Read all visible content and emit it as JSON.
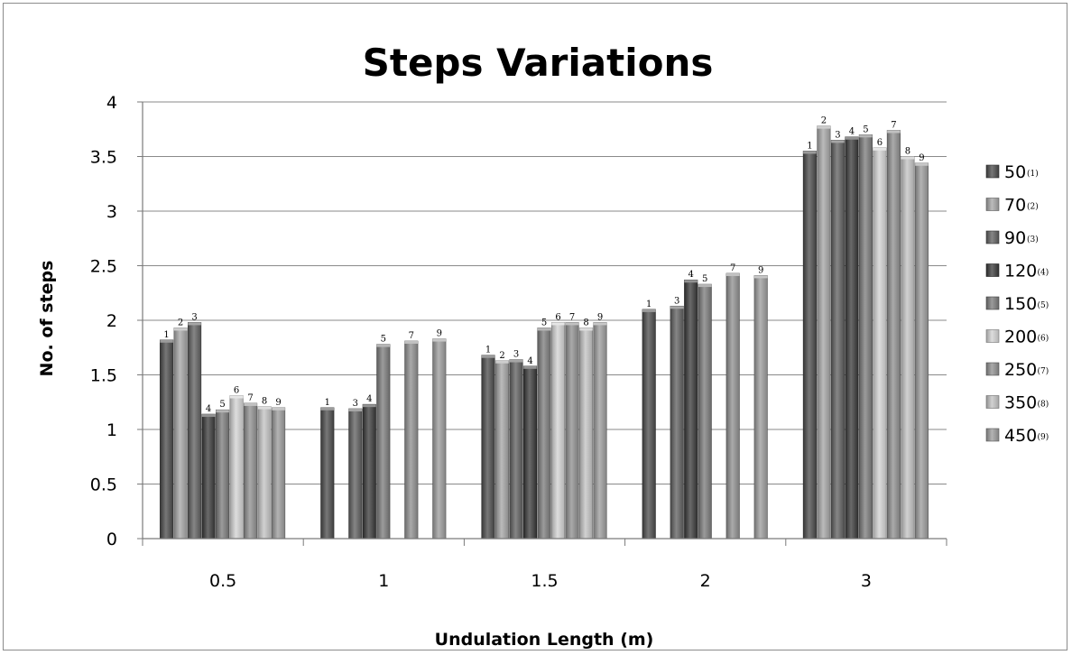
{
  "chart_data": {
    "type": "bar",
    "title": "Steps Variations",
    "xlabel": "Undulation Length (m)",
    "ylabel": "No. of steps",
    "ylim": [
      0,
      4
    ],
    "yticks": [
      "0",
      "0.5",
      "1",
      "1.5",
      "2",
      "2.5",
      "3",
      "3.5",
      "4"
    ],
    "grid": true,
    "legend_position": "right",
    "categories": [
      "0.5",
      "1",
      "1.5",
      "2",
      "3"
    ],
    "series": [
      {
        "name": "50",
        "tag": "(1)",
        "label": "1",
        "color": "#4a4a4a",
        "values": [
          1.82,
          1.2,
          1.68,
          2.1,
          3.55
        ]
      },
      {
        "name": "70",
        "tag": "(2)",
        "label": "2",
        "color": "#a4a4a4",
        "values": [
          1.93,
          null,
          1.63,
          null,
          3.78
        ]
      },
      {
        "name": "90",
        "tag": "(3)",
        "label": "3",
        "color": "#5e5e5e",
        "values": [
          1.98,
          1.19,
          1.64,
          2.13,
          3.65
        ]
      },
      {
        "name": "120",
        "tag": "(4)",
        "label": "4",
        "color": "#383838",
        "values": [
          1.14,
          1.23,
          1.58,
          2.37,
          3.68
        ]
      },
      {
        "name": "150",
        "tag": "(5)",
        "label": "5",
        "color": "#7a7a7a",
        "values": [
          1.18,
          1.78,
          1.93,
          2.33,
          3.7
        ]
      },
      {
        "name": "200",
        "tag": "(6)",
        "label": "6",
        "color": "#d2d2d2",
        "values": [
          1.31,
          null,
          1.98,
          null,
          3.58
        ]
      },
      {
        "name": "250",
        "tag": "(7)",
        "label": "7",
        "color": "#8e8e8e",
        "values": [
          1.24,
          1.81,
          1.98,
          2.43,
          3.74
        ]
      },
      {
        "name": "350",
        "tag": "(8)",
        "label": "8",
        "color": "#c2c2c2",
        "values": [
          1.21,
          null,
          1.93,
          null,
          3.5
        ]
      },
      {
        "name": "450",
        "tag": "(9)",
        "label": "9",
        "color": "#9a9a9a",
        "values": [
          1.2,
          1.83,
          1.98,
          2.41,
          3.44
        ]
      }
    ]
  }
}
